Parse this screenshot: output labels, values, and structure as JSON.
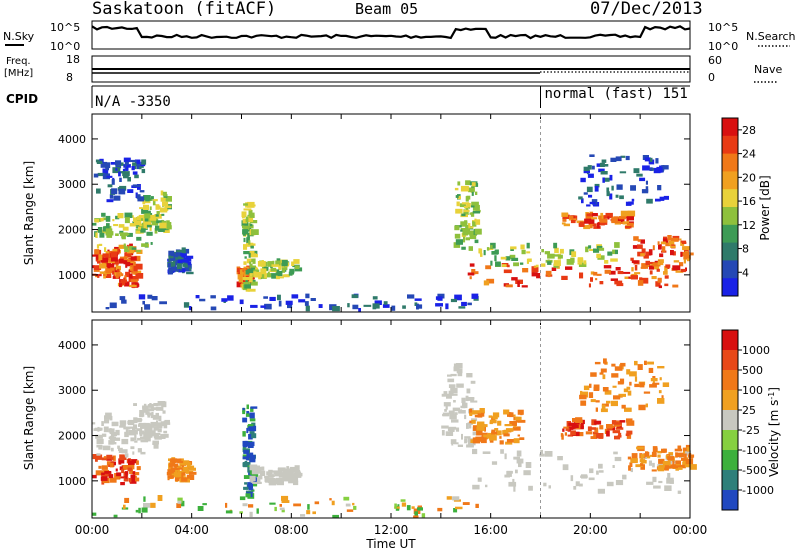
{
  "header": {
    "title": "Saskatoon (fitACF)",
    "beam": "Beam 05",
    "date": "07/Dec/2013"
  },
  "strips": {
    "nsky_label": "N.Sky",
    "nsearch_label": "N.Search",
    "freq_label_line1": "Freq.",
    "freq_label_line2": "[MHz]",
    "nave_label": "Nave",
    "cpid_label": "CPID",
    "noise_ticks": [
      "10^5",
      "10^0"
    ],
    "freq_ticks": [
      "18",
      "8"
    ],
    "nave_ticks": [
      "60",
      "0"
    ],
    "cpid_left": "N/A -3350",
    "cpid_right": "normal (fast) 151",
    "cpid_switch_hour": 18.0
  },
  "chart_data": [
    {
      "type": "heatmap",
      "name": "power",
      "xlabel": "",
      "ylabel": "Slant Range [km]",
      "xlim": [
        0,
        24
      ],
      "ylim": [
        180,
        4550
      ],
      "x_ticks": [
        "00:00",
        "04:00",
        "08:00",
        "12:00",
        "16:00",
        "20:00",
        "00:00"
      ],
      "y_ticks": [
        1000,
        2000,
        3000,
        4000
      ],
      "colorbar": {
        "label": "Power [dB]",
        "ticks": [
          4,
          8,
          12,
          16,
          20,
          24,
          28
        ],
        "range": [
          0,
          30
        ],
        "colors": [
          "#1a22e6",
          "#2548b5",
          "#2f7a6a",
          "#3d9b55",
          "#8ec03c",
          "#e8d23a",
          "#f0a020",
          "#f07818",
          "#e83a14",
          "#d81010"
        ]
      },
      "regions": [
        {
          "t0": 0.0,
          "t1": 0.9,
          "r0": 900,
          "r1": 1500,
          "level": "high"
        },
        {
          "t0": 0.9,
          "t1": 1.8,
          "r0": 700,
          "r1": 1600,
          "level": "high"
        },
        {
          "t0": 0.0,
          "t1": 2.4,
          "r0": 1500,
          "r1": 2300,
          "level": "mid"
        },
        {
          "t0": 1.8,
          "t1": 3.0,
          "r0": 1900,
          "r1": 2800,
          "level": "mid"
        },
        {
          "t0": 0.0,
          "t1": 2.0,
          "r0": 2600,
          "r1": 3500,
          "level": "low"
        },
        {
          "t0": 3.0,
          "t1": 3.8,
          "r0": 1000,
          "r1": 1500,
          "level": "low"
        },
        {
          "t0": 5.8,
          "t1": 6.3,
          "r0": 700,
          "r1": 1100,
          "level": "high"
        },
        {
          "t0": 6.0,
          "t1": 6.4,
          "r0": 600,
          "r1": 2600,
          "level": "mid"
        },
        {
          "t0": 6.3,
          "t1": 8.2,
          "r0": 900,
          "r1": 1250,
          "level": "mid"
        },
        {
          "t0": 14.5,
          "t1": 15.4,
          "r0": 1500,
          "r1": 3000,
          "level": "mid"
        },
        {
          "t0": 15.0,
          "t1": 23.5,
          "r0": 700,
          "r1": 1200,
          "level": "high"
        },
        {
          "t0": 15.5,
          "t1": 21.0,
          "r0": 1150,
          "r1": 1600,
          "level": "mid"
        },
        {
          "t0": 18.8,
          "t1": 21.5,
          "r0": 2000,
          "r1": 2300,
          "level": "high"
        },
        {
          "t0": 21.5,
          "t1": 24.0,
          "r0": 1000,
          "r1": 1800,
          "level": "high"
        },
        {
          "t0": 0.0,
          "t1": 15.5,
          "r0": 180,
          "r1": 500,
          "level": "low"
        },
        {
          "t0": 19.5,
          "t1": 23.0,
          "r0": 2500,
          "r1": 3600,
          "level": "low"
        }
      ]
    },
    {
      "type": "heatmap",
      "name": "velocity",
      "xlabel": "Time UT",
      "ylabel": "Slant Range [km]",
      "xlim": [
        0,
        24
      ],
      "ylim": [
        180,
        4550
      ],
      "x_ticks": [
        "00:00",
        "04:00",
        "08:00",
        "12:00",
        "16:00",
        "20:00",
        "00:00"
      ],
      "y_ticks": [
        1000,
        2000,
        3000,
        4000
      ],
      "colorbar": {
        "label": "Velocity [m s^-1]",
        "ticks": [
          1000,
          500,
          100,
          25,
          -25,
          -100,
          -500,
          -1000
        ],
        "colors": [
          "#2048c0",
          "#2e7f7a",
          "#3cb03c",
          "#86d040",
          "#c8c8c0",
          "#f0a020",
          "#f07818",
          "#e84818",
          "#d81010"
        ]
      },
      "regions": [
        {
          "t0": 0.0,
          "t1": 1.8,
          "r0": 900,
          "r1": 1500,
          "level": "neg_high"
        },
        {
          "t0": 0.0,
          "t1": 2.5,
          "r0": 1500,
          "r1": 2400,
          "level": "ground"
        },
        {
          "t0": 1.6,
          "t1": 3.0,
          "r0": 1900,
          "r1": 2700,
          "level": "ground"
        },
        {
          "t0": 3.0,
          "t1": 3.9,
          "r0": 950,
          "r1": 1450,
          "level": "neg_mid"
        },
        {
          "t0": 6.0,
          "t1": 6.4,
          "r0": 600,
          "r1": 2600,
          "level": "pos_high"
        },
        {
          "t0": 6.3,
          "t1": 8.2,
          "r0": 900,
          "r1": 1250,
          "level": "ground"
        },
        {
          "t0": 0.0,
          "t1": 15.5,
          "r0": 180,
          "r1": 600,
          "level": "mixed"
        },
        {
          "t0": 14.0,
          "t1": 15.3,
          "r0": 1700,
          "r1": 3500,
          "level": "ground"
        },
        {
          "t0": 15.0,
          "t1": 23.8,
          "r0": 700,
          "r1": 1600,
          "level": "ground"
        },
        {
          "t0": 15.0,
          "t1": 17.2,
          "r0": 1800,
          "r1": 2500,
          "level": "neg_mid"
        },
        {
          "t0": 18.8,
          "t1": 21.5,
          "r0": 1900,
          "r1": 2300,
          "level": "neg_high"
        },
        {
          "t0": 21.5,
          "t1": 24.0,
          "r0": 1200,
          "r1": 1700,
          "level": "neg_mid"
        },
        {
          "t0": 19.5,
          "t1": 23.0,
          "r0": 2500,
          "r1": 3600,
          "level": "neg_mid"
        }
      ]
    }
  ]
}
